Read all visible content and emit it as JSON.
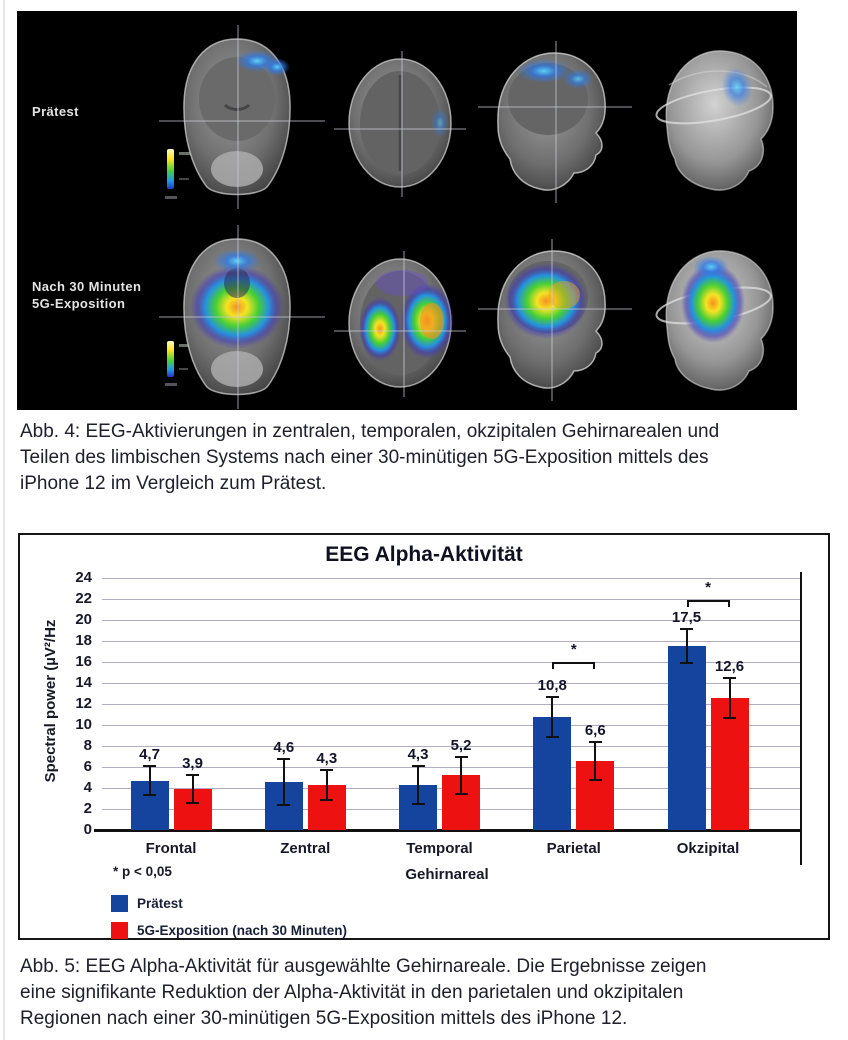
{
  "figure4": {
    "row1_label": "Prätest",
    "row2_label_line1": "Nach 30 Minuten",
    "row2_label_line2": "5G-Exposition",
    "views": [
      "coronal",
      "axial",
      "sagittal",
      "3d-render"
    ],
    "panel_bg": "#000000"
  },
  "captions": {
    "fig4_lines": [
      "Abb. 4: EEG-Aktivierungen in zentralen, temporalen, okzipitalen Gehirnarealen und",
      "Teilen des limbischen Systems nach einer 30-minütigen 5G-Exposition mittels des",
      "iPhone 12 im Vergleich zum Prätest."
    ],
    "fig5_lines": [
      "Abb. 5: EEG Alpha-Aktivität für ausgewählte Gehirnareale. Die Ergebnisse zeigen",
      "eine signifikante Reduktion der Alpha-Aktivität in den parietalen und okzipitalen",
      "Regionen nach einer 30-minütigen 5G-Exposition mittels des iPhone 12."
    ]
  },
  "chart_data": {
    "type": "bar",
    "title": "EEG Alpha-Aktivität",
    "xlabel": "Gehirnareal",
    "ylabel": "Spectral power (µV²/Hz",
    "ylim": [
      0,
      24
    ],
    "ytick_step": 2,
    "grid": true,
    "legend_position": "bottom-left",
    "categories": [
      "Frontal",
      "Zentral",
      "Temporal",
      "Parietal",
      "Okzipital"
    ],
    "series": [
      {
        "name": "Prätest",
        "color": "#15449f",
        "values": [
          4.7,
          4.6,
          4.3,
          10.8,
          17.5
        ],
        "value_labels": [
          "4,7",
          "4,6",
          "4,3",
          "10,8",
          "17,5"
        ],
        "errors": [
          1.4,
          2.2,
          1.8,
          1.9,
          1.6
        ]
      },
      {
        "name": "5G-Exposition (nach 30 Minuten)",
        "color": "#ee1111",
        "values": [
          3.9,
          4.3,
          5.2,
          6.6,
          12.6
        ],
        "value_labels": [
          "3,9",
          "4,3",
          "5,2",
          "6,6",
          "12,6"
        ],
        "errors": [
          1.3,
          1.4,
          1.8,
          1.8,
          1.9
        ]
      }
    ],
    "significance": {
      "note": "* p < 0,05",
      "symbol": "*",
      "brackets": [
        {
          "category": "Parietal",
          "y_value": 16.0
        },
        {
          "category": "Okzipital",
          "y_value": 21.9
        }
      ]
    },
    "colors": {
      "grid": "#b2abc4",
      "axis": "#111111",
      "text": "#181828"
    }
  }
}
